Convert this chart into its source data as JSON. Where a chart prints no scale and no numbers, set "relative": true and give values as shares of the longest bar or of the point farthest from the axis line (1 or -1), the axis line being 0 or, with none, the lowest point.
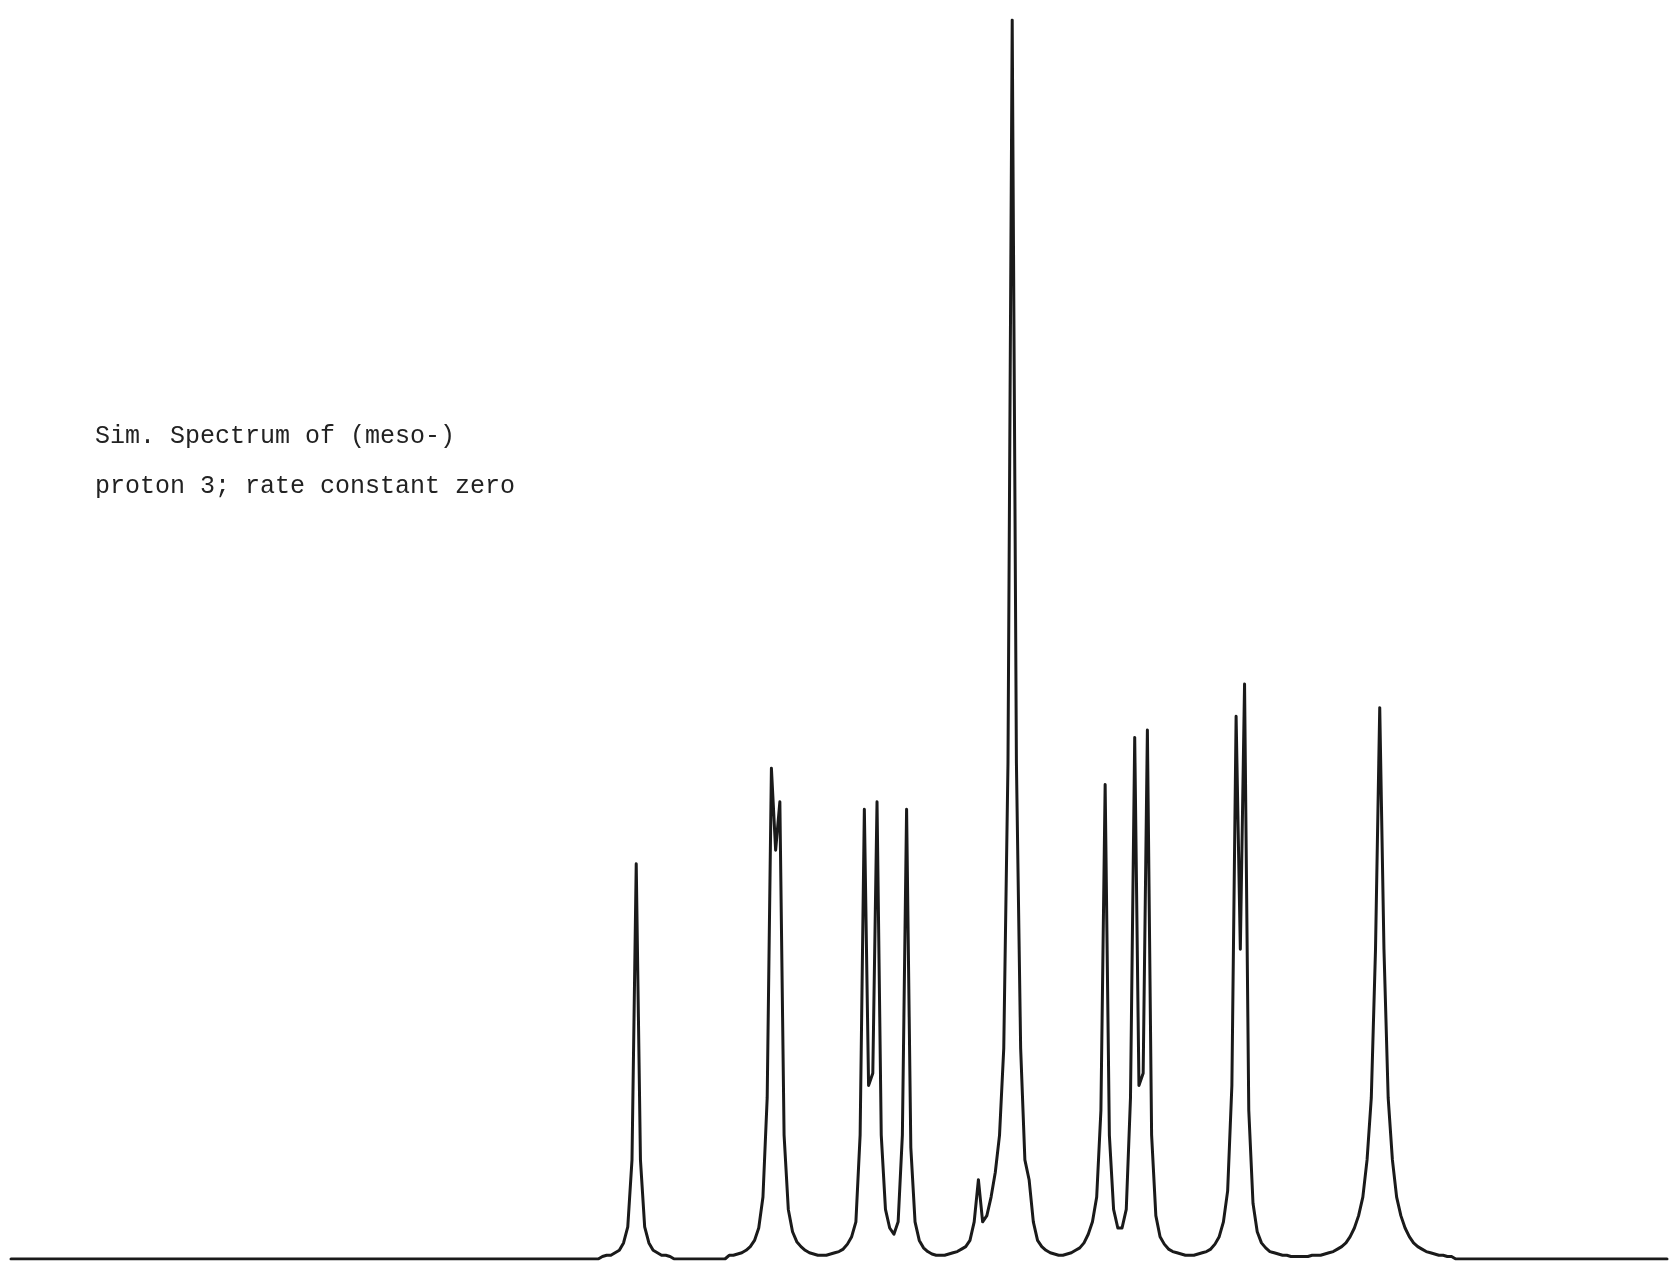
{
  "chart_data": {
    "type": "line",
    "relative": true,
    "title": "Sim. Spectrum of (meso-)\nproton 3; rate constant zero",
    "line_style": "solid",
    "categories": [
      null,
      null,
      null,
      null,
      null,
      null,
      null,
      null,
      null,
      null,
      null,
      null,
      null,
      null,
      null,
      null,
      null,
      null,
      null,
      null,
      null,
      null,
      null,
      null,
      null,
      null,
      null,
      null,
      null,
      null,
      null,
      null,
      null,
      null,
      null,
      null,
      null,
      null,
      null,
      null,
      null,
      null,
      null,
      null,
      null,
      null,
      null,
      null,
      null,
      null,
      null,
      null,
      null,
      null,
      null,
      null,
      null,
      null,
      null,
      null,
      null,
      null,
      null,
      null,
      null,
      null,
      null,
      null,
      null,
      null,
      null,
      null,
      null,
      null,
      null,
      null,
      null,
      null,
      null,
      null,
      null,
      null,
      null,
      null,
      null,
      null,
      null,
      null,
      null,
      null,
      null,
      null,
      null,
      null,
      null,
      null,
      null,
      null,
      null,
      null,
      null,
      null,
      null,
      null,
      null,
      null,
      null,
      null,
      null,
      null,
      null,
      null,
      null,
      null,
      null,
      null,
      null,
      null,
      null,
      null,
      null,
      null,
      null,
      null,
      null,
      null,
      null,
      null,
      null,
      null,
      null,
      null,
      null,
      null,
      null,
      null,
      null,
      null,
      null,
      null,
      null,
      null,
      null,
      null,
      null,
      null,
      null,
      null,
      null,
      null,
      null,
      null,
      null,
      null,
      null,
      null,
      null,
      null,
      null,
      null,
      null,
      null,
      null,
      null,
      null,
      null,
      null,
      null,
      null,
      null,
      null,
      null,
      null,
      null,
      null,
      null,
      null,
      null,
      null,
      null,
      null,
      null,
      null,
      null,
      null,
      null,
      null,
      null,
      null,
      null,
      null,
      null,
      null,
      null,
      null,
      null,
      null,
      null,
      null,
      null,
      null,
      null,
      null,
      null,
      null,
      null,
      null,
      null,
      null,
      null,
      null,
      null,
      null,
      null,
      null,
      null,
      null,
      null,
      null,
      null,
      null,
      null,
      null,
      null,
      null,
      null,
      null,
      null,
      null,
      null,
      null,
      null,
      null,
      null,
      null,
      null,
      null,
      null,
      null,
      null,
      null,
      null,
      null,
      null,
      null,
      null,
      null,
      null,
      null,
      null,
      null,
      null,
      null,
      null,
      null,
      null,
      null,
      null,
      null,
      null,
      null,
      null,
      null,
      null,
      null,
      null,
      null,
      null,
      null,
      null,
      null,
      null,
      null,
      null,
      null,
      null,
      null,
      null,
      null,
      null,
      null,
      null,
      null,
      null,
      null,
      null,
      null,
      null,
      null,
      null,
      null,
      null,
      null,
      null,
      null,
      null,
      null,
      null,
      null,
      null,
      null,
      null,
      null,
      null,
      null,
      null,
      null,
      null,
      null,
      null,
      null,
      null,
      null,
      null,
      null,
      null,
      null,
      null,
      null,
      null,
      null,
      null,
      null,
      null,
      null,
      null,
      null,
      null,
      null,
      null,
      null,
      null,
      null,
      null,
      null,
      null,
      null,
      null,
      null,
      null,
      null,
      null,
      null,
      null,
      null,
      null,
      null,
      null,
      null,
      null,
      null,
      null,
      null,
      null,
      null,
      null,
      null,
      null,
      null,
      null,
      null,
      null,
      null,
      null,
      null,
      null,
      null,
      null,
      null,
      null,
      null,
      null,
      null,
      null,
      null,
      null,
      null,
      null,
      null,
      null,
      null,
      null,
      null,
      null,
      null,
      null,
      null,
      null,
      null,
      null,
      null,
      null,
      null
    ],
    "series": [
      {
        "color": "#1a1a1a",
        "values": [
          0,
          0,
          0,
          0,
          0,
          0,
          0,
          0,
          0,
          0,
          0,
          0,
          0,
          0,
          0,
          0,
          0,
          0,
          0,
          0,
          0,
          0,
          0,
          0,
          0,
          0,
          0,
          0,
          0,
          0,
          0,
          0,
          0,
          0,
          0,
          0,
          0,
          0,
          0,
          0,
          0,
          0,
          0,
          0,
          0,
          0,
          0,
          0,
          0,
          0,
          0,
          0,
          0,
          0,
          0,
          0,
          0,
          0,
          0,
          0,
          0,
          0,
          0,
          0,
          0,
          0,
          0,
          0,
          0,
          0,
          0,
          0,
          0,
          0,
          0,
          0,
          0,
          0,
          0,
          0,
          0,
          0,
          0,
          0,
          0,
          0,
          0,
          0,
          0,
          0,
          0,
          0,
          0,
          0,
          0,
          0,
          0,
          0,
          0,
          0,
          0,
          0,
          0,
          0,
          0,
          0,
          0,
          0,
          0,
          0,
          0,
          0,
          0,
          0,
          0,
          0,
          0,
          0,
          0,
          0,
          0,
          0,
          0,
          0,
          0,
          0,
          0,
          0,
          0,
          0,
          0,
          0,
          0,
          0,
          0,
          0,
          0,
          0,
          0,
          0,
          0.002,
          0.003,
          0.003,
          0.005,
          0.007,
          0.013,
          0.026,
          0.08,
          0.319,
          0.08,
          0.026,
          0.013,
          0.007,
          0.005,
          0.003,
          0.003,
          0.002,
          0,
          0,
          0,
          0,
          0,
          0,
          0,
          0,
          0,
          0,
          0,
          0,
          0,
          0.003,
          0.003,
          0.004,
          0.005,
          0.007,
          0.01,
          0.015,
          0.025,
          0.05,
          0.13,
          0.396,
          0.33,
          0.369,
          0.1,
          0.04,
          0.022,
          0.014,
          0.01,
          0.007,
          0.005,
          0.004,
          0.003,
          0.003,
          0.003,
          0.004,
          0.005,
          0.006,
          0.008,
          0.012,
          0.018,
          0.03,
          0.1,
          0.363,
          0.14,
          0.15,
          0.369,
          0.1,
          0.04,
          0.025,
          0.02,
          0.03,
          0.1,
          0.363,
          0.09,
          0.03,
          0.015,
          0.009,
          0.006,
          0.004,
          0.003,
          0.003,
          0.003,
          0.004,
          0.005,
          0.006,
          0.008,
          0.01,
          0.015,
          0.03,
          0.064,
          0.03,
          0.035,
          0.05,
          0.07,
          0.1,
          0.17,
          0.4,
          1,
          0.4,
          0.17,
          0.08,
          0.064,
          0.03,
          0.015,
          0.01,
          0.007,
          0.005,
          0.004,
          0.003,
          0.003,
          0.004,
          0.005,
          0.007,
          0.009,
          0.013,
          0.02,
          0.03,
          0.05,
          0.12,
          0.383,
          0.1,
          0.04,
          0.025,
          0.025,
          0.04,
          0.13,
          0.421,
          0.14,
          0.15,
          0.427,
          0.1,
          0.035,
          0.018,
          0.012,
          0.008,
          0.006,
          0.005,
          0.004,
          0.003,
          0.003,
          0.003,
          0.004,
          0.005,
          0.006,
          0.008,
          0.012,
          0.018,
          0.03,
          0.055,
          0.14,
          0.438,
          0.25,
          0.464,
          0.12,
          0.045,
          0.022,
          0.013,
          0.009,
          0.006,
          0.005,
          0.004,
          0.003,
          0.003,
          0.002,
          0.002,
          0.002,
          0.002,
          0.002,
          0.003,
          0.003,
          0.003,
          0.004,
          0.005,
          0.006,
          0.008,
          0.01,
          0.013,
          0.018,
          0.025,
          0.035,
          0.05,
          0.08,
          0.13,
          0.25,
          0.445,
          0.25,
          0.13,
          0.08,
          0.05,
          0.035,
          0.025,
          0.018,
          0.013,
          0.01,
          0.008,
          0.006,
          0.005,
          0.004,
          0.003,
          0.003,
          0.002,
          0.002,
          0,
          0,
          0,
          0,
          0,
          0,
          0,
          0,
          0,
          0,
          0,
          0,
          0,
          0,
          0,
          0,
          0,
          0,
          0,
          0,
          0,
          0,
          0,
          0,
          0,
          0,
          0,
          0,
          0,
          0,
          0,
          0,
          0,
          0,
          0,
          0,
          0,
          0,
          0,
          0,
          0,
          0,
          0,
          0,
          0,
          0,
          0,
          0,
          0,
          0,
          0
        ]
      }
    ]
  }
}
